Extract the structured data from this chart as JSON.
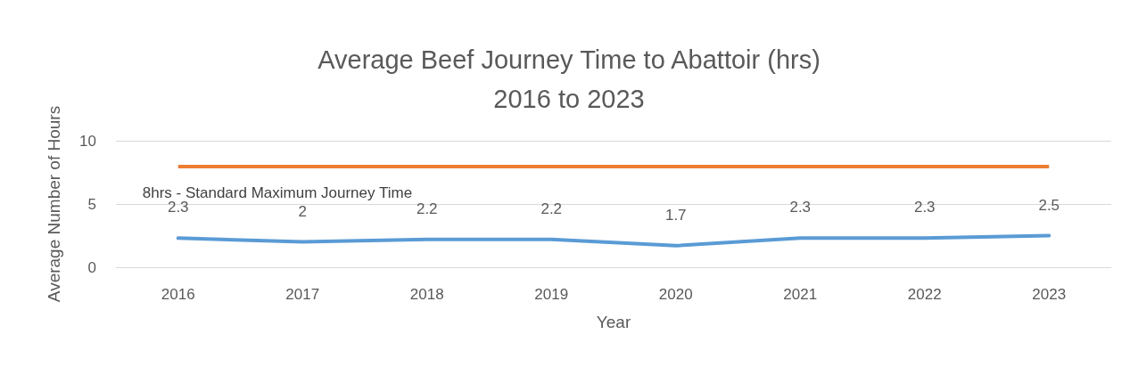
{
  "chart_data": {
    "type": "line",
    "title": "Average Beef Journey Time to Abattoir (hrs)\n2016 to 2023",
    "xlabel": "Year",
    "ylabel": "Average Number of Hours",
    "categories": [
      "2016",
      "2017",
      "2018",
      "2019",
      "2020",
      "2021",
      "2022",
      "2023"
    ],
    "series": [
      {
        "color": "#5b9bd5",
        "values": [
          2.3,
          2,
          2.2,
          2.2,
          1.7,
          2.3,
          2.3,
          2.5
        ]
      }
    ],
    "ylim": [
      0,
      10
    ],
    "yticks": [
      0,
      5,
      10
    ],
    "grid": "y",
    "data_labels": true,
    "marker": "none",
    "line_style": "solid",
    "ref_lines": [
      {
        "axis": "y",
        "value": 8,
        "label": "8hrs - Standard Maximum Journey Time",
        "color": "#ed7d31",
        "line_style": "solid"
      }
    ]
  }
}
